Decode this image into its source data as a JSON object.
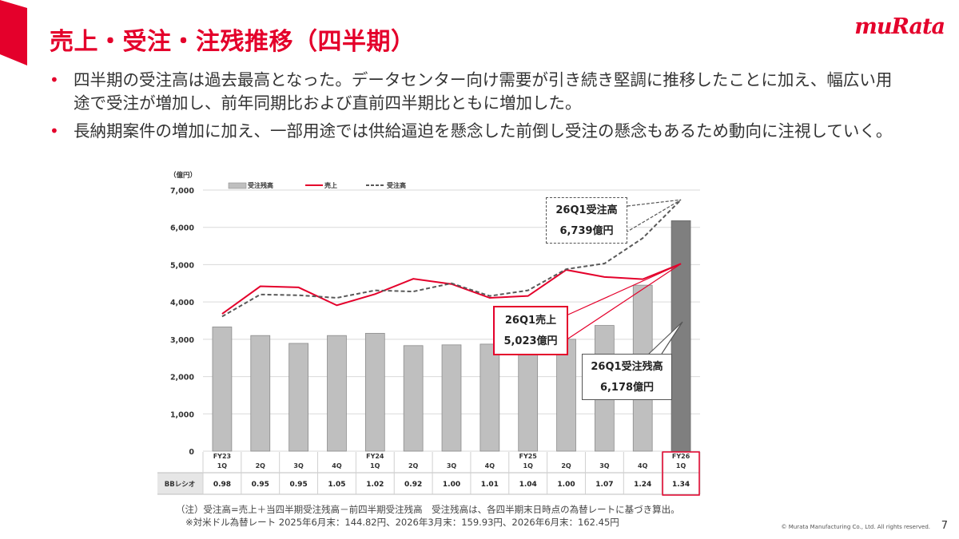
{
  "slide": {
    "title": "売上・受注・注残推移（四半期）",
    "logo": "muRata",
    "bullets": [
      "四半期の受注高は過去最高となった。データセンター向け需要が引き続き堅調に推移したことに加え、幅広い用途で受注が増加し、前年同期比および直前四半期比ともに増加した。",
      "長納期案件の増加に加え、一部用途では供給逼迫を懸念した前倒し受注の懸念もあるため動向に注視していく。"
    ],
    "notes": [
      "（注）受注高=売上＋当四半期受注残高－前四半期受注残高　受注残高は、各四半期末日時点の為替レートに基づき算出。",
      "※対米ドル為替レート 2025年6月末：144.82円、2026年3月末：159.93円、2026年6月末：162.45円"
    ],
    "copyright": "© Murata Manufacturing Co., Ltd. All rights reserved.",
    "page_number": "7"
  },
  "colors": {
    "brand_red": "#e4002b",
    "bar_gray": "#bfbfbf",
    "bar_dark": "#7f7f7f",
    "orders_line": "#595959"
  },
  "callouts": {
    "orders": {
      "line1": "26Q1受注高",
      "line2": "6,739億円"
    },
    "sales": {
      "line1": "26Q1売上",
      "line2": "5,023億円"
    },
    "backlog": {
      "line1": "26Q1受注残高",
      "line2": "6,178億円"
    }
  },
  "chart_data": {
    "type": "bar",
    "unit_label": "（億円）",
    "ylim": [
      0,
      7000
    ],
    "yticks": [
      0,
      1000,
      2000,
      3000,
      4000,
      5000,
      6000,
      7000
    ],
    "ytick_labels": [
      "0",
      "1,000",
      "2,000",
      "3,000",
      "4,000",
      "5,000",
      "6,000",
      "7,000"
    ],
    "categories": [
      [
        "FY23",
        "1Q"
      ],
      [
        "",
        "2Q"
      ],
      [
        "",
        "3Q"
      ],
      [
        "",
        "4Q"
      ],
      [
        "FY24",
        "1Q"
      ],
      [
        "",
        "2Q"
      ],
      [
        "",
        "3Q"
      ],
      [
        "",
        "4Q"
      ],
      [
        "FY25",
        "1Q"
      ],
      [
        "",
        "2Q"
      ],
      [
        "",
        "3Q"
      ],
      [
        "",
        "4Q"
      ],
      [
        "FY26",
        "1Q"
      ]
    ],
    "legend_position": "top-left",
    "grid": true,
    "series": [
      {
        "name": "受注残高",
        "kind": "bar",
        "values": [
          3330,
          3100,
          2890,
          3100,
          3160,
          2830,
          2850,
          2870,
          2900,
          3000,
          3370,
          4450,
          6178
        ]
      },
      {
        "name": "売上",
        "kind": "line",
        "values": [
          3680,
          4420,
          4390,
          3910,
          4210,
          4620,
          4480,
          4110,
          4160,
          4860,
          4670,
          4610,
          5023
        ]
      },
      {
        "name": "受注高",
        "kind": "dashed-line",
        "values": [
          3610,
          4200,
          4180,
          4110,
          4310,
          4280,
          4500,
          4160,
          4310,
          4880,
          5030,
          5710,
          6739
        ]
      }
    ],
    "bb_ratio": {
      "label": "BBレシオ",
      "values": [
        "0.98",
        "0.95",
        "0.95",
        "1.05",
        "1.02",
        "0.92",
        "1.00",
        "1.01",
        "1.04",
        "1.00",
        "1.07",
        "1.24",
        "1.34"
      ]
    }
  }
}
